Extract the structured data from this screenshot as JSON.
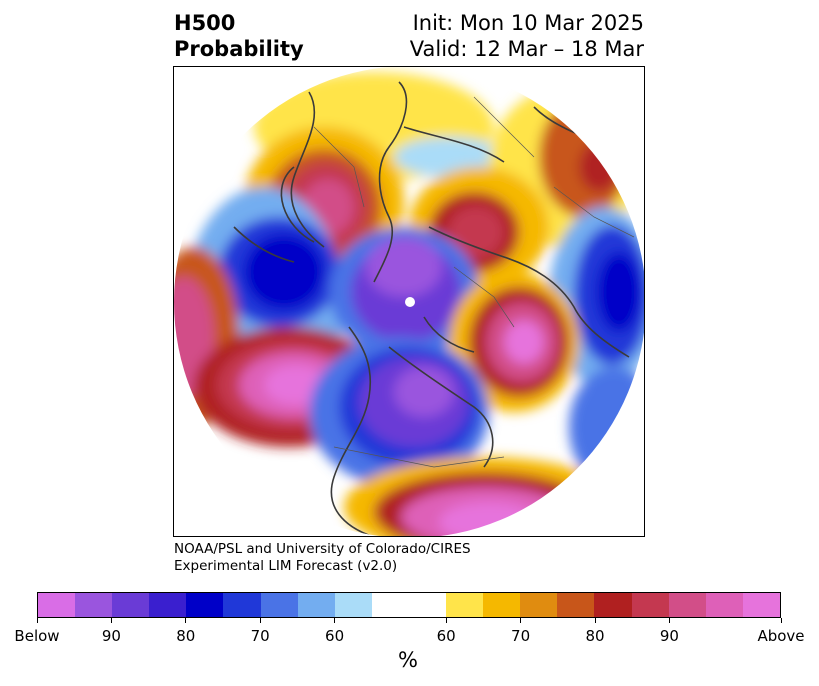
{
  "title": {
    "left_line1": "H500",
    "left_line2": "Probability",
    "right_line1": "Init: Mon 10 Mar 2025",
    "right_line2": "Valid: 12 Mar – 18 Mar"
  },
  "credit": {
    "line1": "NOAA/PSL and University of Colorado/CIRES",
    "line2": "Experimental LIM Forecast (v2.0)"
  },
  "colorbar": {
    "unit": "%",
    "colors": [
      "#d96de6",
      "#9a55de",
      "#6a3bd6",
      "#3a1fcf",
      "#0000c8",
      "#2038d8",
      "#4a73e6",
      "#73adf0",
      "#aadcf8",
      "#ffffff",
      "#ffe44a",
      "#f5b800",
      "#e08c10",
      "#c8561a",
      "#b02020",
      "#c43850",
      "#d24e88",
      "#de60b8",
      "#e673dc"
    ],
    "tick_labels": [
      "Below",
      "90",
      "80",
      "70",
      "60",
      "60",
      "70",
      "80",
      "90",
      "Above"
    ]
  },
  "map": {
    "projection": "north polar stereographic",
    "legend_colors": {
      "below_strong": "#0000c8",
      "below_extreme": "#6a3bd6",
      "above_strong": "#b02020",
      "above_extreme": "#e673dc"
    }
  }
}
